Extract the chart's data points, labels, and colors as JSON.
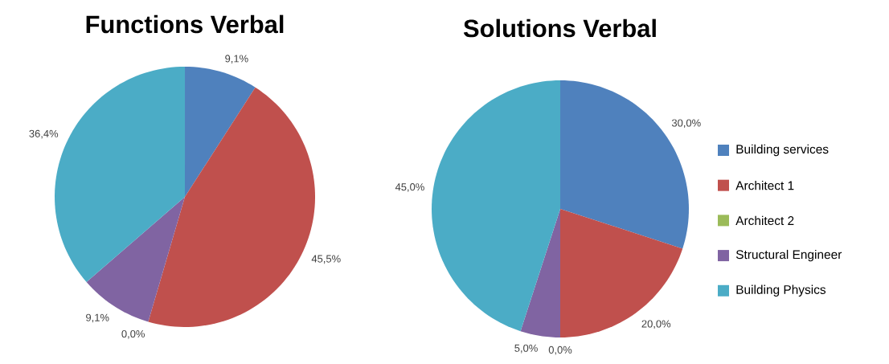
{
  "chart_data": [
    {
      "type": "pie",
      "title": "Functions Verbal",
      "categories": [
        null,
        null,
        null,
        null,
        null
      ],
      "values": [
        9.1,
        45.5,
        0.0,
        9.1,
        36.4
      ],
      "value_labels": [
        "9,1%",
        "45,5%",
        "0,0%",
        "9,1%",
        "36,4%"
      ],
      "colors": [
        "#4f81bd",
        "#c0504d",
        "#9bbb59",
        "#8064a2",
        "#4bacc6"
      ],
      "legend": false
    },
    {
      "type": "pie",
      "title": "Solutions Verbal",
      "categories": [
        "Building services",
        "Architect 1",
        "Architect 2",
        "Structural Engineer",
        "Building Physics"
      ],
      "values": [
        30.0,
        20.0,
        0.0,
        5.0,
        45.0
      ],
      "value_labels": [
        "30,0%",
        "20,0%",
        "0,0%",
        "5,0%",
        "45,0%"
      ],
      "colors": [
        "#4f81bd",
        "#c0504d",
        "#9bbb59",
        "#8064a2",
        "#4bacc6"
      ],
      "legend": "right"
    }
  ]
}
